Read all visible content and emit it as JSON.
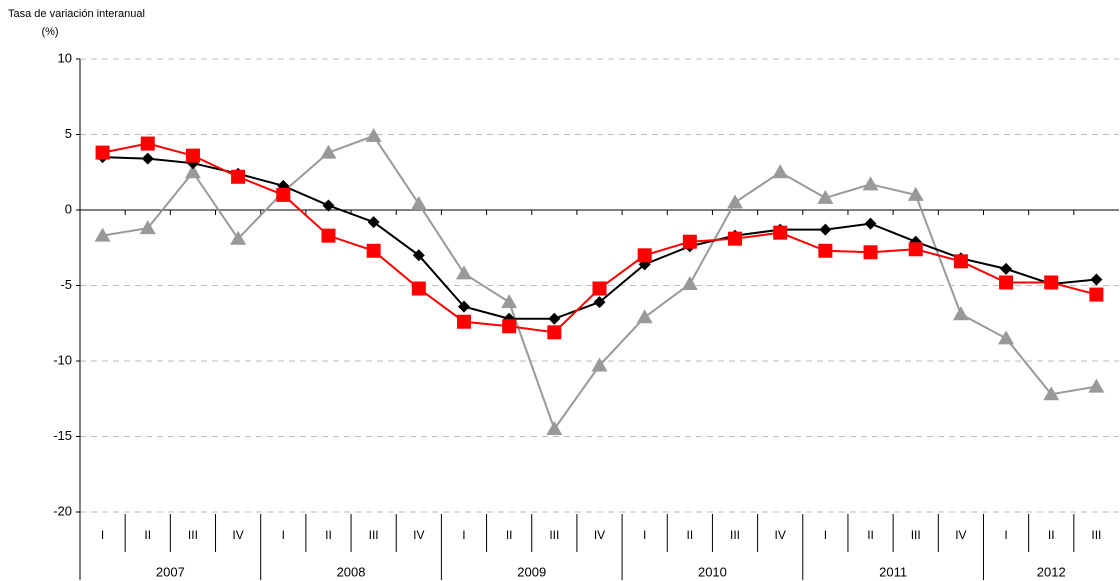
{
  "chart_data": {
    "type": "line",
    "title": "Tasa de variación interanual",
    "unit": "(%)",
    "groups": [
      {
        "label": "2007",
        "categories": [
          "I",
          "II",
          "III",
          "IV"
        ]
      },
      {
        "label": "2008",
        "categories": [
          "I",
          "II",
          "III",
          "IV"
        ]
      },
      {
        "label": "2009",
        "categories": [
          "I",
          "II",
          "III",
          "IV"
        ]
      },
      {
        "label": "2010",
        "categories": [
          "I",
          "II",
          "III",
          "IV"
        ]
      },
      {
        "label": "2011",
        "categories": [
          "I",
          "II",
          "III",
          "IV"
        ]
      },
      {
        "label": "2012",
        "categories": [
          "I",
          "II",
          "III"
        ]
      }
    ],
    "series": [
      {
        "color": "#999999",
        "marker": "triangle",
        "values": [
          -1.7,
          -1.2,
          2.5,
          -1.9,
          1.2,
          3.8,
          4.9,
          0.4,
          -4.2,
          -6.1,
          -14.5,
          -10.3,
          -7.1,
          -4.9,
          0.5,
          2.5,
          0.8,
          1.7,
          1.0,
          -6.9,
          -8.5,
          -12.2,
          -11.7
        ]
      },
      {
        "color": "#000000",
        "marker": "diamond",
        "values": [
          3.5,
          3.4,
          3.1,
          2.4,
          1.6,
          0.3,
          -0.8,
          -3.0,
          -6.4,
          -7.2,
          -7.2,
          -6.1,
          -3.6,
          -2.4,
          -1.7,
          -1.3,
          -1.3,
          -0.9,
          -2.1,
          -3.2,
          -3.9,
          -4.9,
          -4.6
        ]
      },
      {
        "color": "#ff0000",
        "marker": "square",
        "values": [
          3.8,
          4.4,
          3.6,
          2.2,
          1.0,
          -1.7,
          -2.7,
          -5.2,
          -7.4,
          -7.7,
          -8.1,
          -5.2,
          -3.0,
          -2.1,
          -1.9,
          -1.5,
          -2.7,
          -2.8,
          -2.6,
          -3.4,
          -4.8,
          -4.8,
          -5.6
        ]
      }
    ],
    "ylim": [
      -20,
      10
    ],
    "yticks": [
      -20,
      -15,
      -10,
      -5,
      0,
      5,
      10
    ],
    "grid": true
  }
}
